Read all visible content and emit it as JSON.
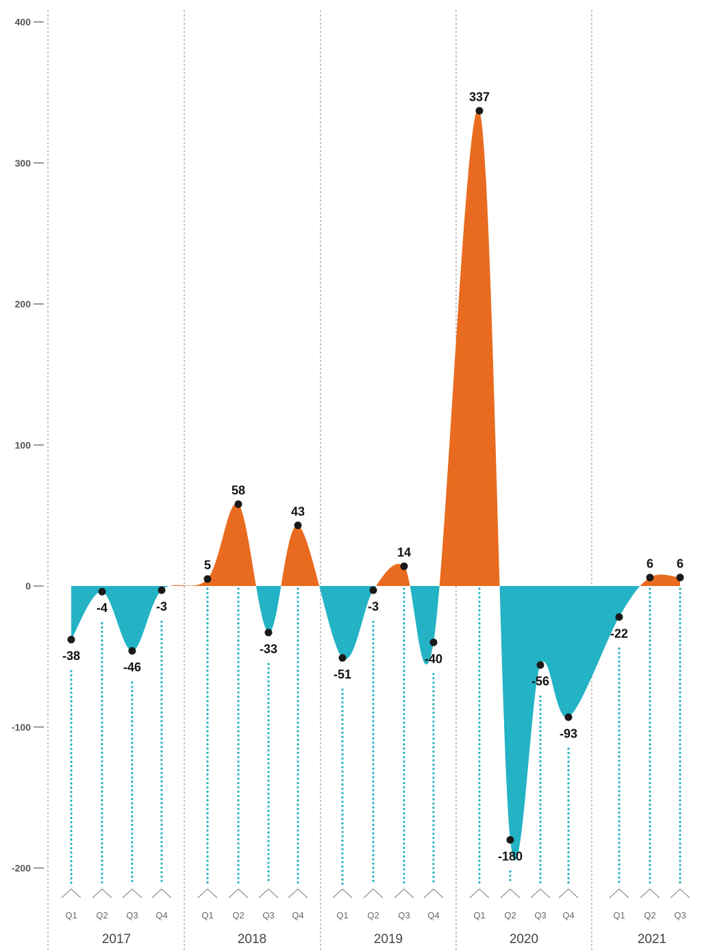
{
  "chart_data": {
    "type": "area",
    "title": "",
    "xlabel": "",
    "ylabel": "",
    "ylim": [
      -215,
      400
    ],
    "yticks": [
      400,
      300,
      200,
      100,
      0,
      -100,
      -200
    ],
    "grid": false,
    "colors": {
      "positive": "#E96B1F",
      "negative": "#23B3C5",
      "marker": "#1a1a1a",
      "dots": "#23B3C5"
    },
    "years": [
      {
        "label": "2017",
        "quarters": [
          "Q1",
          "Q2",
          "Q3",
          "Q4"
        ]
      },
      {
        "label": "2018",
        "quarters": [
          "Q1",
          "Q2",
          "Q3",
          "Q4"
        ]
      },
      {
        "label": "2019",
        "quarters": [
          "Q1",
          "Q2",
          "Q3",
          "Q4"
        ]
      },
      {
        "label": "2020",
        "quarters": [
          "Q1",
          "Q2",
          "Q3",
          "Q4"
        ]
      },
      {
        "label": "2021",
        "quarters": [
          "Q1",
          "Q2",
          "Q3"
        ]
      }
    ],
    "series": [
      {
        "values": [
          -38,
          -4,
          -46,
          -3,
          5,
          58,
          -33,
          43,
          -51,
          -3,
          14,
          -40,
          337,
          -180,
          -56,
          -93,
          -22,
          6,
          6
        ]
      }
    ]
  }
}
